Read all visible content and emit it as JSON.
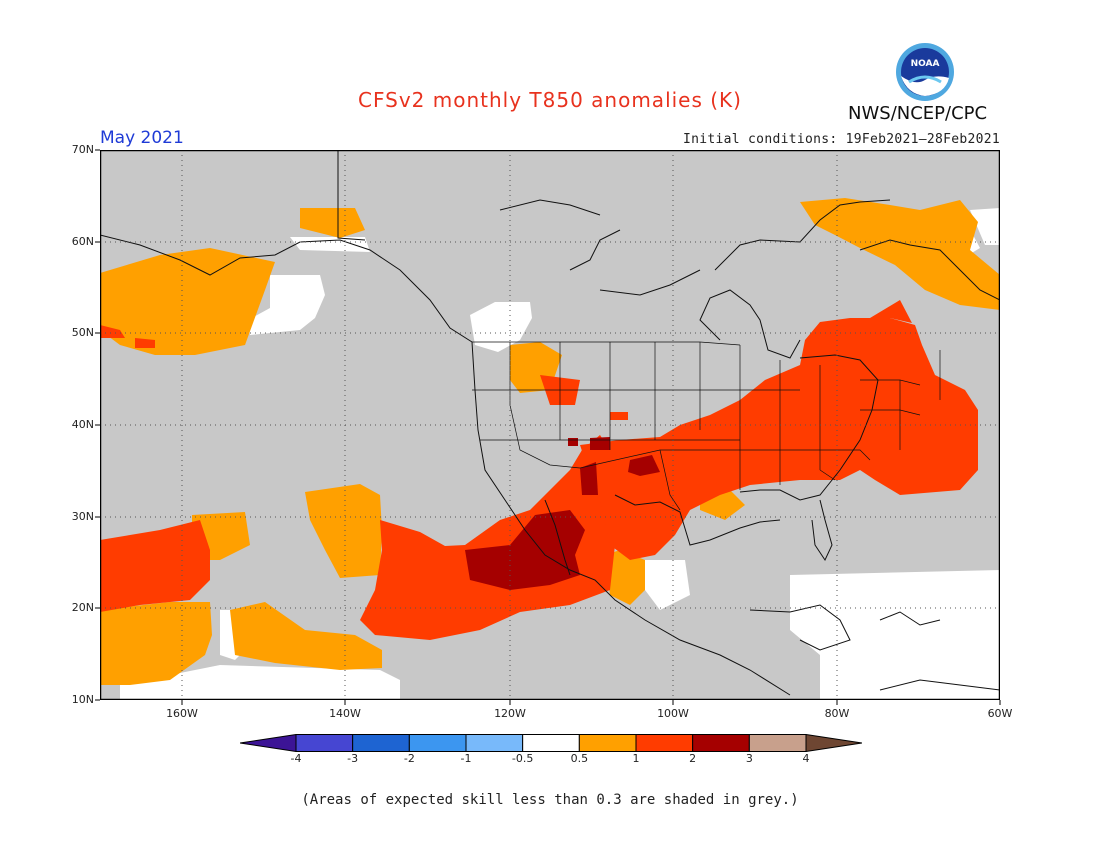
{
  "header": {
    "title": "CFSv2 monthly T850 anomalies (K)",
    "organization": "NWS/NCEP/CPC",
    "period": "May 2021",
    "initial_conditions": "Initial conditions: 19Feb2021–28Feb2021"
  },
  "logo": {
    "text": "NOAA",
    "icon": "noaa-logo"
  },
  "map": {
    "lat_labels": [
      "70N",
      "60N",
      "50N",
      "40N",
      "30N",
      "20N",
      "10N"
    ],
    "lon_labels": [
      "160W",
      "140W",
      "120W",
      "100W",
      "80W",
      "60W"
    ],
    "lat_range": [
      10,
      70
    ],
    "lon_range": [
      -170,
      -60
    ],
    "grid": "dotted",
    "background_color": "#c8c8c8"
  },
  "legend": {
    "labels": [
      "-4",
      "-3",
      "-2",
      "-1",
      "-0.5",
      "0.5",
      "1",
      "2",
      "3",
      "4"
    ],
    "colors": [
      "#3c1496",
      "#4646d2",
      "#1e64d2",
      "#3c96f0",
      "#78b9fa",
      "#ffffff",
      "#ffa000",
      "#ff3c00",
      "#a50000",
      "#c8a08c",
      "#6e4632"
    ]
  },
  "footnote": "(Areas of expected skill less than 0.3 are shaded in grey.)"
}
